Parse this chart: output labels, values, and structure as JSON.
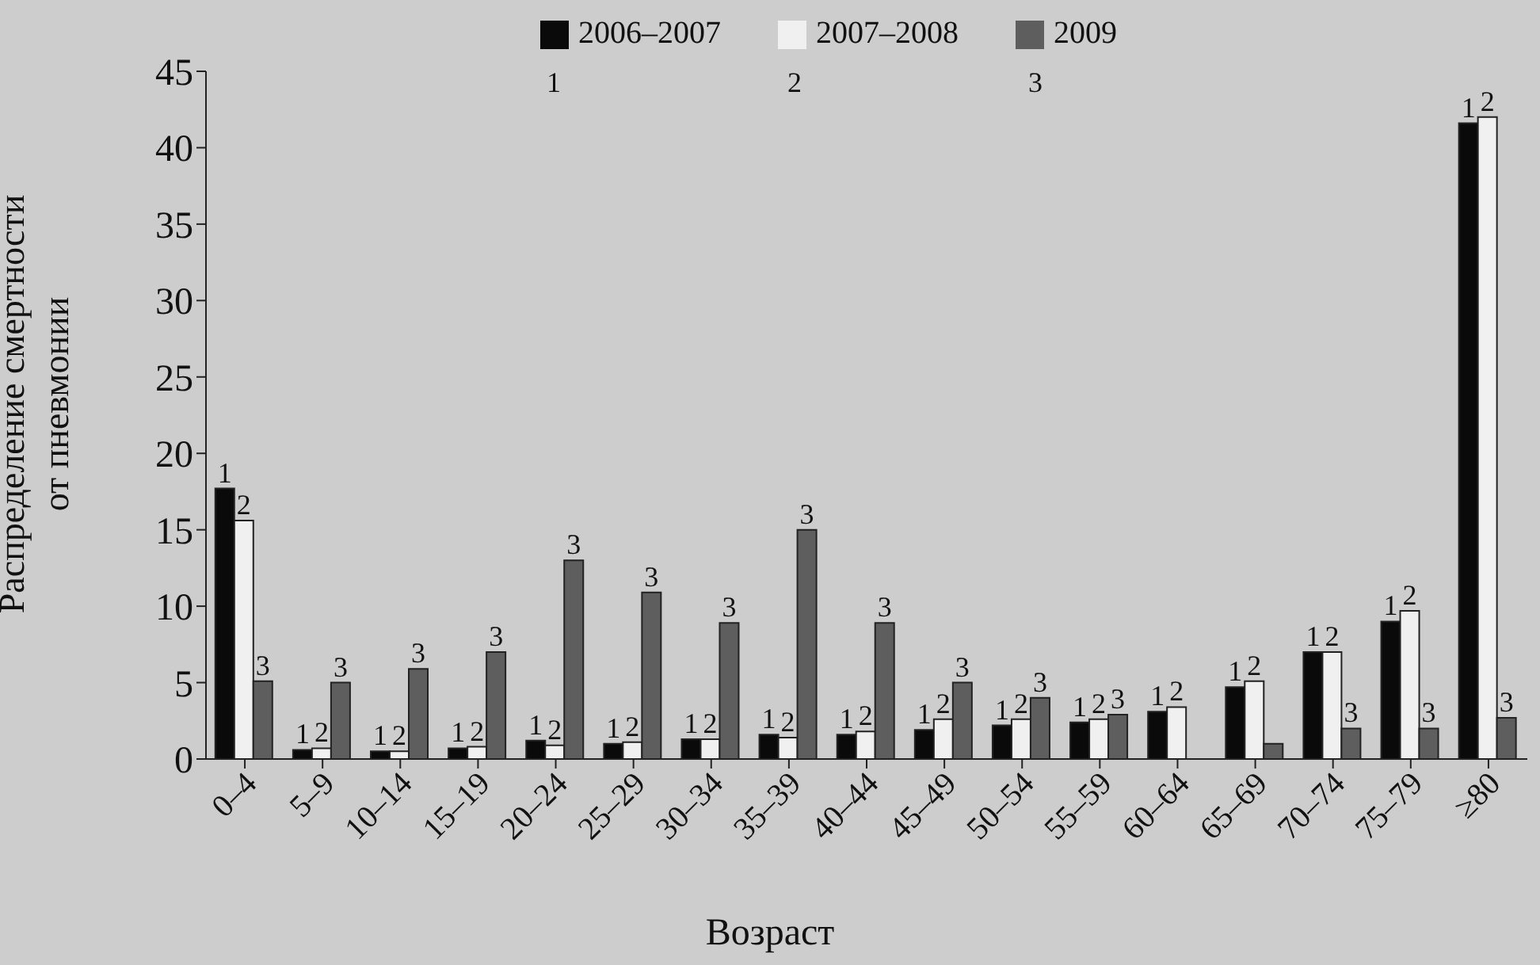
{
  "chart_data": {
    "type": "bar",
    "xlabel": "Возраст",
    "ylabel": "Распределение смертности от пневмонии",
    "categories": [
      "0–4",
      "5–9",
      "10–14",
      "15–19",
      "20–24",
      "25–29",
      "30–34",
      "35–39",
      "40–44",
      "45–49",
      "50–54",
      "55–59",
      "60–64",
      "65–69",
      "70–74",
      "75–79",
      "≥80"
    ],
    "series": [
      {
        "name": "2006–2007",
        "color": "#0a0a0a",
        "values": [
          17.7,
          0.6,
          0.5,
          0.7,
          1.2,
          1.0,
          1.3,
          1.6,
          1.6,
          1.9,
          2.2,
          2.4,
          3.1,
          4.7,
          7.0,
          9.0,
          41.6
        ]
      },
      {
        "name": "2007–2008",
        "color": "#f0f0f0",
        "values": [
          15.6,
          0.7,
          0.5,
          0.8,
          0.9,
          1.1,
          1.3,
          1.4,
          1.8,
          2.6,
          2.6,
          2.6,
          3.4,
          5.1,
          7.0,
          9.7,
          42.0
        ]
      },
      {
        "name": "2009",
        "color": "#5e5e5e",
        "values": [
          5.1,
          5.0,
          5.9,
          7.0,
          13.0,
          10.9,
          8.9,
          15.0,
          8.9,
          5.0,
          4.0,
          2.9,
          null,
          1.0,
          2.0,
          2.0,
          2.7
        ]
      }
    ],
    "annotations": [
      "1",
      "2",
      "3",
      "1",
      "2",
      "3",
      "1",
      "2",
      "3",
      "1",
      "2",
      "3",
      "1",
      "2",
      "3",
      "1",
      "2",
      "3",
      "1",
      "2",
      "3",
      "1",
      "2",
      "3",
      "1",
      "2",
      "3",
      "1",
      "2",
      "3",
      "1",
      "2",
      "3",
      "1",
      "2",
      "3",
      "1",
      "2",
      "3",
      "1",
      "2",
      "1",
      "2",
      "3",
      "1",
      "2",
      "3",
      "1",
      "2",
      "3",
      "1",
      "2"
    ],
    "ylim": [
      0,
      45
    ],
    "yticks": [
      0,
      5,
      10,
      15,
      20,
      25,
      30,
      35,
      40,
      45
    ],
    "grid": false,
    "legend": "top"
  }
}
